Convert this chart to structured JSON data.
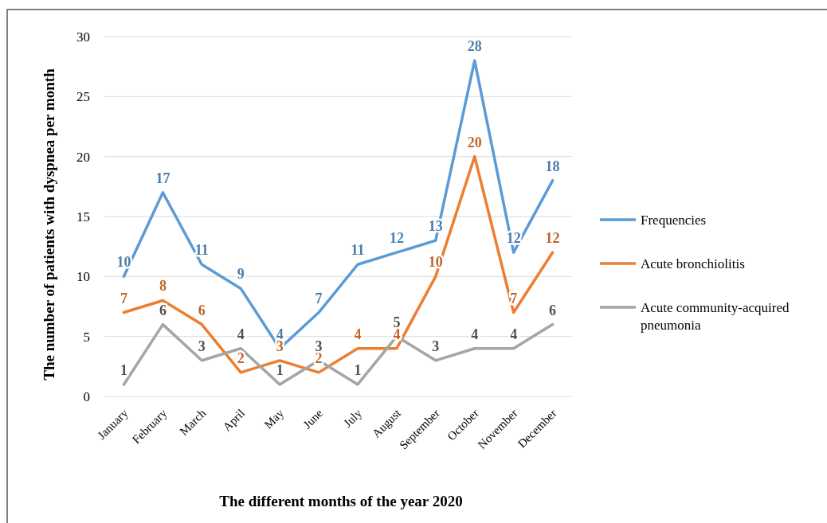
{
  "chart_data": {
    "type": "line",
    "xlabel": "The different months of the year 2020",
    "ylabel": "The number of patients with dyspnea per month",
    "categories": [
      "January",
      "February",
      "March",
      "April",
      "May",
      "June",
      "July",
      "August",
      "September",
      "October",
      "November",
      "December"
    ],
    "series": [
      {
        "name": "Frequencies",
        "color": "#5b9bd5",
        "values": [
          10,
          17,
          11,
          9,
          4,
          7,
          11,
          12,
          13,
          28,
          12,
          18
        ]
      },
      {
        "name": "Acute bronchiolitis",
        "color": "#ed7d31",
        "values": [
          7,
          8,
          6,
          2,
          3,
          2,
          4,
          4,
          10,
          20,
          7,
          12
        ]
      },
      {
        "name": "Acute community-acquired pneumonia",
        "color": "#a5a5a5",
        "values": [
          1,
          6,
          3,
          4,
          1,
          3,
          1,
          5,
          3,
          4,
          4,
          6
        ]
      }
    ],
    "ylim": [
      0,
      30
    ],
    "yticks": [
      0,
      5,
      10,
      15,
      20,
      25,
      30
    ],
    "grid": "y",
    "legend": "right",
    "data_labels": true,
    "marker": "none",
    "line_style": "solid"
  }
}
